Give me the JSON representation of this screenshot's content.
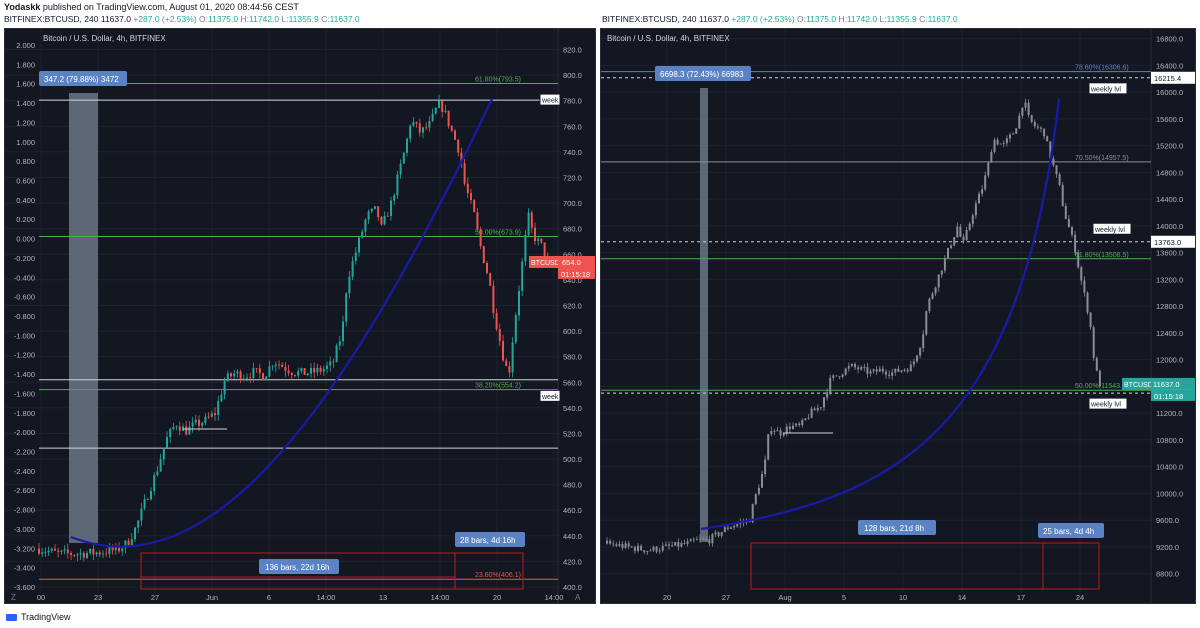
{
  "publisher": {
    "user": "Yodaskk",
    "rest": "published on TradingView.com, August 01, 2020 08:44:56 CEST"
  },
  "left_header": {
    "symbol": "BITFINEX:BTCUSD, 240",
    "price": "11637.0",
    "change": "+287.0 (+2.53%)",
    "o_label": "O:",
    "o": "11375.0",
    "h_label": "H:",
    "h": "11742.0",
    "l_label": "L:",
    "l": "11355.9",
    "c_label": "C:",
    "c": "11637.0"
  },
  "right_header": {
    "symbol": "BITFINEX:BTCUSD, 240",
    "price": "11637.0",
    "change": "+287.0 (+2.53%)",
    "o_label": "O:",
    "o": "11375.0",
    "h_label": "H:",
    "h": "11742.0",
    "l_label": "L:",
    "l": "11355.9",
    "c_label": "C:",
    "c": "11637.0"
  },
  "footer": {
    "brand": "TradingView"
  },
  "colors": {
    "bg": "#131722",
    "up": "#26a69a",
    "down": "#ef5350",
    "grid": "#1e222d",
    "curve": "#1a1aa8",
    "fib_green": "#4caf50",
    "label_blue": "#5b83c4",
    "white": "#d1d4dc",
    "red_box": "#b71c1c",
    "grey_candle": "#8a8d96"
  },
  "chart_data": [
    {
      "type": "candlestick",
      "title": "Bitcoin / U.S. Dollar, 4h, BITFINEX",
      "left_axis": {
        "ticks": [
          "2.000",
          "1.800",
          "1.600",
          "1.400",
          "1.200",
          "1.000",
          "0.800",
          "0.600",
          "0.400",
          "0.200",
          "0.000",
          "-0.200",
          "-0.400",
          "-0.600",
          "-0.800",
          "-1.000",
          "-1.200",
          "-1.400",
          "-1.600",
          "-1.800",
          "-2.000",
          "-2.200",
          "-2.400",
          "-2.600",
          "-2.800",
          "-3.000",
          "-3.200",
          "-3.400",
          "-3.600"
        ]
      },
      "right_axis": {
        "ticks": [
          "820.0",
          "800.0",
          "780.0",
          "760.0",
          "740.0",
          "720.0",
          "700.0",
          "680.0",
          "660.0",
          "640.0",
          "620.0",
          "600.0",
          "580.0",
          "560.0",
          "540.0",
          "520.0",
          "500.0",
          "480.0",
          "460.0",
          "440.0",
          "420.0",
          "400.0"
        ],
        "ylim": [
          400,
          822
        ]
      },
      "x_ticks": [
        "00",
        "23",
        "27",
        "Jun",
        "6",
        "14:00",
        "13",
        "14:00",
        "20",
        "14:00"
      ],
      "bottom_icons": {
        "left": "Z",
        "right": "A"
      },
      "fib_levels": [
        {
          "label": "61.80%(793.5)",
          "value": 793.5,
          "color": "green"
        },
        {
          "label": "50.00%(673.9)",
          "value": 673.9,
          "color": "green"
        },
        {
          "label": "38.20%(554.2)",
          "value": 554.2,
          "color": "green"
        },
        {
          "label": "23.60%(406.1)",
          "value": 406.1,
          "color": "red"
        }
      ],
      "white_lines": [
        780.5,
        562,
        508.5
      ],
      "weekly_labels": [
        "week",
        "week"
      ],
      "price_label": {
        "symbol": "BTCUSD",
        "value": "654.0",
        "countdown": "01:15:18",
        "level": 654.0
      },
      "measure_labels": [
        "347.2 (79.88%) 3472",
        "136 bars, 22d 16h",
        "28 bars, 4d 16h"
      ],
      "price_path": [
        [
          0,
          430
        ],
        [
          4,
          426
        ],
        [
          8,
          426
        ],
        [
          12,
          427
        ],
        [
          16,
          429
        ],
        [
          18,
          434
        ],
        [
          20,
          448
        ],
        [
          22,
          470
        ],
        [
          24,
          490
        ],
        [
          26,
          515
        ],
        [
          28,
          528
        ],
        [
          30,
          522
        ],
        [
          32,
          527
        ],
        [
          34,
          530
        ],
        [
          36,
          536
        ],
        [
          38,
          562
        ],
        [
          40,
          567
        ],
        [
          42,
          565
        ],
        [
          44,
          568
        ],
        [
          46,
          565
        ],
        [
          48,
          577
        ],
        [
          50,
          572
        ],
        [
          52,
          568
        ],
        [
          54,
          567
        ],
        [
          56,
          568
        ],
        [
          58,
          570
        ],
        [
          60,
          574
        ],
        [
          62,
          600
        ],
        [
          63,
          640
        ],
        [
          65,
          665
        ],
        [
          67,
          690
        ],
        [
          69,
          695
        ],
        [
          70,
          680
        ],
        [
          72,
          700
        ],
        [
          74,
          730
        ],
        [
          75,
          745
        ],
        [
          76,
          765
        ],
        [
          78,
          755
        ],
        [
          80,
          762
        ],
        [
          81,
          772
        ],
        [
          82,
          778
        ],
        [
          83,
          770
        ],
        [
          84,
          760
        ],
        [
          86,
          740
        ],
        [
          87,
          715
        ],
        [
          89,
          690
        ],
        [
          90,
          670
        ],
        [
          92,
          640
        ],
        [
          93,
          615
        ],
        [
          95,
          578
        ],
        [
          96,
          565
        ],
        [
          97,
          600
        ],
        [
          98,
          630
        ],
        [
          99,
          660
        ],
        [
          100,
          690
        ],
        [
          101,
          675
        ],
        [
          103,
          665
        ],
        [
          104,
          654
        ]
      ]
    },
    {
      "type": "candlestick",
      "title": "Bitcoin / U.S. Dollar, 4h, BITFINEX",
      "right_axis": {
        "ticks": [
          "16800.0",
          "16400.0",
          "16000.0",
          "15600.0",
          "15200.0",
          "14800.0",
          "14400.0",
          "14000.0",
          "13600.0",
          "13200.0",
          "12800.0",
          "12400.0",
          "12000.0",
          "11600.0",
          "11200.0",
          "10800.0",
          "10400.0",
          "10000.0",
          "9600.0",
          "9200.0",
          "8800.0"
        ],
        "ylim": [
          8600,
          16900
        ]
      },
      "x_ticks": [
        "20",
        "27",
        "Aug",
        "5",
        "10",
        "14",
        "17",
        "24"
      ],
      "fib_levels": [
        {
          "label": "78.60%(16306.6)",
          "value": 16306.6,
          "color": "blue"
        },
        {
          "label": "70.50%(14957.5)",
          "value": 14957.5,
          "color": "grey"
        },
        {
          "label": "61.80%(13508.5)",
          "value": 13508.5,
          "color": "green"
        },
        {
          "label": "50.00%(11543.",
          "value": 11543,
          "color": "green"
        }
      ],
      "dashed_levels": [
        {
          "value": 16215.4,
          "label": "16215.4"
        },
        {
          "value": 13763.0,
          "label": "13763.0"
        },
        {
          "value": 11500.0,
          "label": "11500.0"
        }
      ],
      "weekly_labels": [
        "weekly lvl",
        "weekly lvl",
        "weekly lvl"
      ],
      "price_label": {
        "symbol": "BTCUSD",
        "value": "11637.0",
        "countdown": "01:15:18",
        "level": 11637.0
      },
      "measure_labels": [
        "6698.3 (72.43%) 66983",
        "128 bars, 21d 8h",
        "25 bars, 4d 4h"
      ],
      "price_path": [
        [
          0,
          9250
        ],
        [
          4,
          9200
        ],
        [
          8,
          9150
        ],
        [
          12,
          9200
        ],
        [
          16,
          9250
        ],
        [
          18,
          9300
        ],
        [
          20,
          9300
        ],
        [
          22,
          9400
        ],
        [
          24,
          9500
        ],
        [
          26,
          9550
        ],
        [
          28,
          9600
        ],
        [
          29,
          9900
        ],
        [
          31,
          10400
        ],
        [
          32,
          11000
        ],
        [
          34,
          10900
        ],
        [
          36,
          11000
        ],
        [
          38,
          11000
        ],
        [
          40,
          11200
        ],
        [
          42,
          11300
        ],
        [
          44,
          11700
        ],
        [
          46,
          11800
        ],
        [
          48,
          11900
        ],
        [
          50,
          11850
        ],
        [
          52,
          11800
        ],
        [
          54,
          11850
        ],
        [
          56,
          11800
        ],
        [
          58,
          11850
        ],
        [
          60,
          11900
        ],
        [
          62,
          12300
        ],
        [
          63,
          12800
        ],
        [
          65,
          13200
        ],
        [
          67,
          13600
        ],
        [
          69,
          14000
        ],
        [
          70,
          13700
        ],
        [
          72,
          14200
        ],
        [
          74,
          14600
        ],
        [
          75,
          14900
        ],
        [
          76,
          15300
        ],
        [
          78,
          15200
        ],
        [
          80,
          15400
        ],
        [
          81,
          15600
        ],
        [
          82,
          15900
        ],
        [
          83,
          15600
        ],
        [
          84,
          15500
        ],
        [
          86,
          15400
        ],
        [
          87,
          15100
        ],
        [
          89,
          14600
        ],
        [
          90,
          14200
        ],
        [
          92,
          13700
        ],
        [
          93,
          13300
        ],
        [
          95,
          12600
        ],
        [
          96,
          11900
        ],
        [
          97,
          11637
        ]
      ]
    }
  ]
}
